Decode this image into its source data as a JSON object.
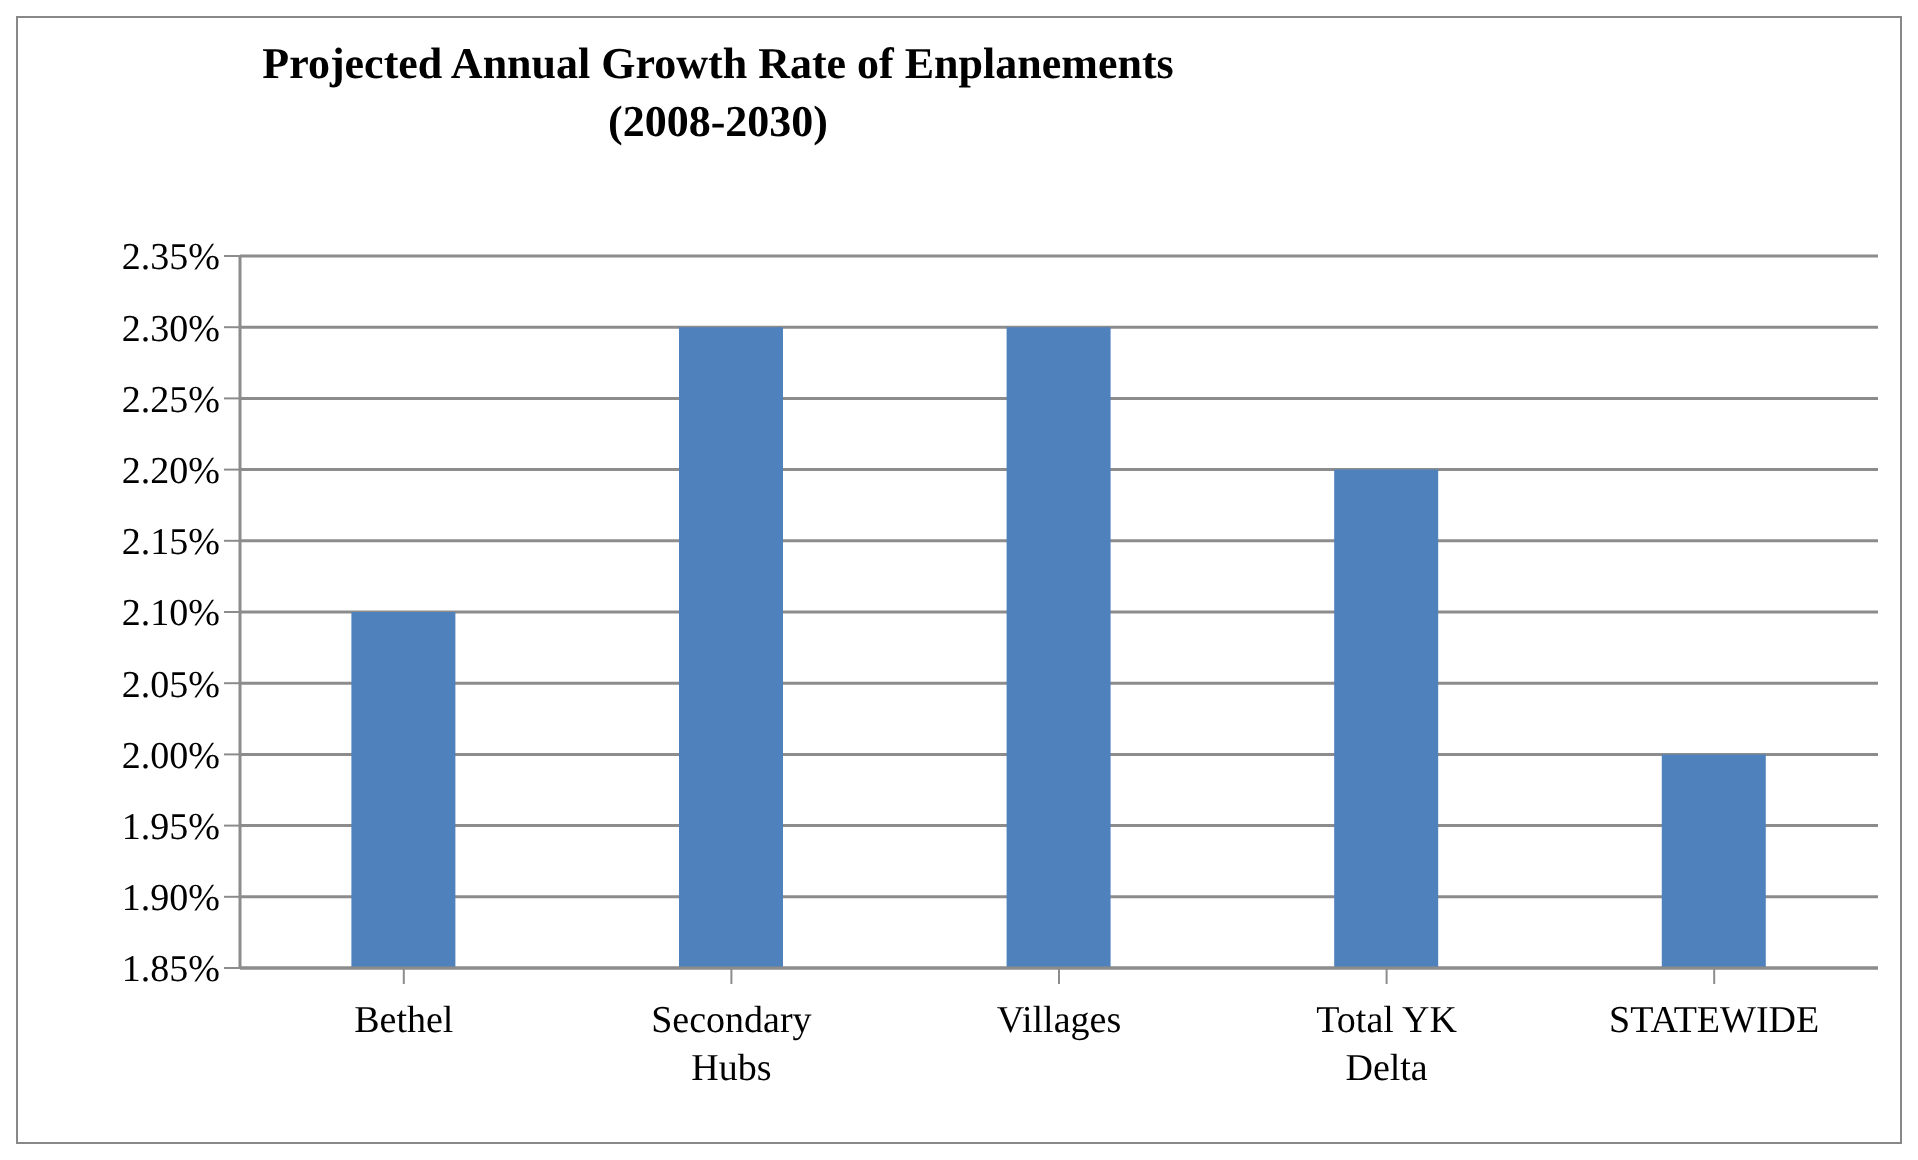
{
  "chart_data": {
    "type": "bar",
    "title": "Projected Annual Growth Rate of Enplanements",
    "subtitle": "(2008-2030)",
    "categories": [
      "Bethel",
      "Secondary Hubs",
      "Villages",
      "Total YK Delta",
      "STATEWIDE"
    ],
    "values": [
      2.1,
      2.3,
      2.3,
      2.2,
      2.0
    ],
    "color": "#4f81bd",
    "ylim": [
      1.85,
      2.35
    ],
    "yticks": [
      {
        "value": 1.85,
        "label": "1.85%"
      },
      {
        "value": 1.9,
        "label": "1.90%"
      },
      {
        "value": 1.95,
        "label": "1.95%"
      },
      {
        "value": 2.0,
        "label": "2.00%"
      },
      {
        "value": 2.05,
        "label": "2.05%"
      },
      {
        "value": 2.1,
        "label": "2.10%"
      },
      {
        "value": 2.15,
        "label": "2.15%"
      },
      {
        "value": 2.2,
        "label": "2.20%"
      },
      {
        "value": 2.25,
        "label": "2.25%"
      },
      {
        "value": 2.3,
        "label": "2.30%"
      },
      {
        "value": 2.35,
        "label": "2.35%"
      }
    ],
    "grid": "y",
    "legend": false
  }
}
